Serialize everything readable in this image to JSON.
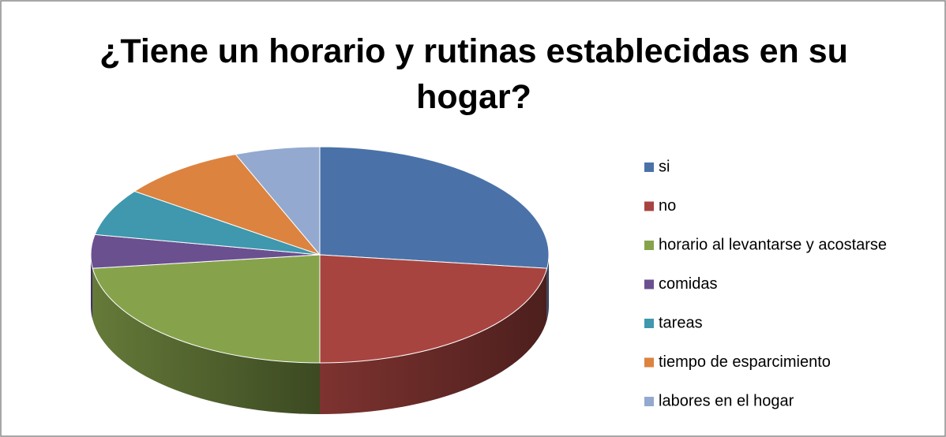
{
  "chart_data": {
    "type": "pie",
    "title": "¿Tiene un horario y rutinas establecidas en su hogar?",
    "categories": [
      "si",
      "no",
      "horario al levantarse y acostarse",
      "comidas",
      "tareas",
      "tiempo de esparcimiento",
      "labores en el hogar"
    ],
    "values": [
      27,
      23,
      23,
      5,
      7,
      9,
      6
    ],
    "colors": [
      "#4a72a8",
      "#a84440",
      "#86a34c",
      "#6b5090",
      "#3f98ad",
      "#dc8340",
      "#93a9cf"
    ],
    "legend": "right"
  }
}
